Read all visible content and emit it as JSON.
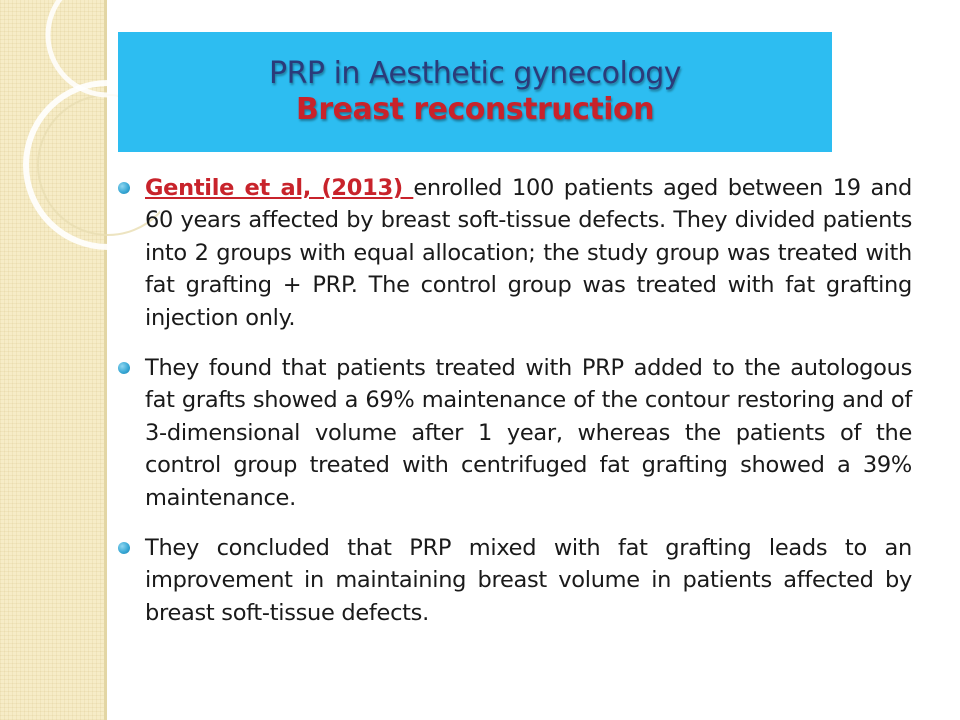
{
  "slide": {
    "title_line1": "PRP in Aesthetic gynecology",
    "title_line2": "Breast reconstruction",
    "bullets": [
      {
        "citation": "Gentile et al, (2013) ",
        "text": "enrolled 100 patients aged between 19 and 60 years affected by breast soft-tissue defects. They divided patients into 2 groups with equal allocation; the study group was treated with fat grafting + PRP. The control group was treated with fat grafting injection only."
      },
      {
        "text": "They found that patients treated with PRP added to the autologous fat grafts showed a 69% maintenance of the contour restoring and of 3-dimensional volume after 1 year, whereas the patients of the control group treated with centrifuged fat grafting showed a 39% maintenance."
      },
      {
        "text": "They concluded that PRP mixed with fat grafting leads to an improvement in maintaining breast volume in patients affected by breast soft-tissue defects."
      }
    ]
  },
  "colors": {
    "title_background": "#2dbdf1",
    "title_line1": "#2b3b7a",
    "title_line2": "#c8232b",
    "citation": "#c8232b",
    "bullet": "#39a9d6"
  }
}
